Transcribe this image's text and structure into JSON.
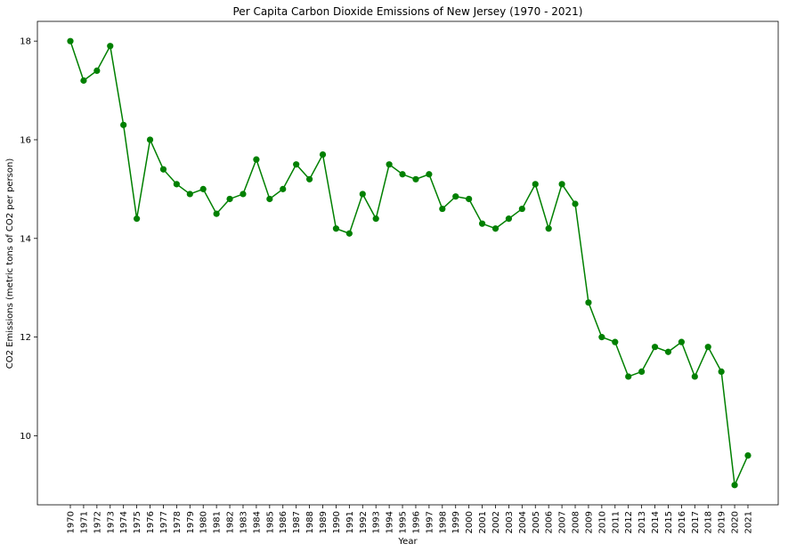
{
  "chart_data": {
    "type": "line",
    "title": "Per Capita Carbon Dioxide Emissions of New Jersey (1970 - 2021)",
    "xlabel": "Year",
    "ylabel": "CO2 Emissions (metric tons of CO2 per person)",
    "x": [
      "1970",
      "1971",
      "1972",
      "1973",
      "1974",
      "1975",
      "1976",
      "1977",
      "1978",
      "1979",
      "1980",
      "1981",
      "1982",
      "1983",
      "1984",
      "1985",
      "1986",
      "1987",
      "1988",
      "1989",
      "1990",
      "1991",
      "1992",
      "1993",
      "1994",
      "1995",
      "1996",
      "1997",
      "1998",
      "1999",
      "2000",
      "2001",
      "2002",
      "2003",
      "2004",
      "2005",
      "2006",
      "2007",
      "2008",
      "2009",
      "2010",
      "2011",
      "2012",
      "2013",
      "2014",
      "2015",
      "2016",
      "2017",
      "2018",
      "2019",
      "2020",
      "2021"
    ],
    "series": [
      {
        "color": "#008000",
        "marker": "circle",
        "values": [
          18.0,
          17.2,
          17.4,
          17.9,
          16.3,
          14.4,
          16.0,
          15.4,
          15.1,
          14.9,
          15.0,
          14.5,
          14.8,
          14.9,
          15.6,
          14.8,
          15.0,
          15.5,
          15.2,
          15.7,
          14.2,
          14.1,
          14.9,
          14.4,
          15.5,
          15.3,
          15.2,
          15.3,
          14.6,
          14.85,
          14.8,
          14.3,
          14.2,
          14.4,
          14.6,
          15.1,
          14.2,
          15.1,
          14.7,
          12.7,
          12.0,
          11.9,
          11.2,
          11.3,
          11.8,
          11.7,
          11.9,
          11.2,
          11.8,
          11.3,
          9.0,
          9.6
        ]
      }
    ],
    "ylim": [
      8.6,
      18.4
    ],
    "yticks": [
      10,
      12,
      14,
      16,
      18
    ],
    "grid": false,
    "legend": "none"
  }
}
